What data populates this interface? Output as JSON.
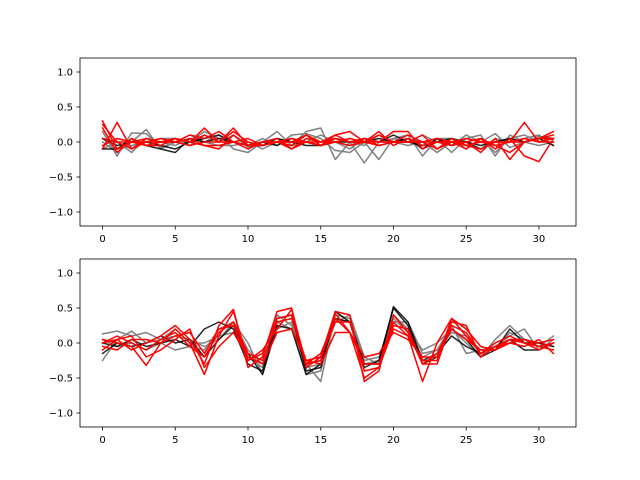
{
  "figure": {
    "background": "#ffffff"
  },
  "chart_data": [
    {
      "type": "line",
      "title": "",
      "xlabel": "",
      "ylabel": "",
      "xlim": [
        -1.55,
        32.55
      ],
      "ylim": [
        -1.2,
        1.2
      ],
      "xticks": [
        0,
        5,
        10,
        15,
        20,
        25,
        30
      ],
      "yticks": [
        -1.0,
        -0.5,
        0.0,
        0.5,
        1.0
      ],
      "xtick_labels": [
        "0",
        "5",
        "10",
        "15",
        "20",
        "25",
        "30"
      ],
      "ytick_labels": [
        "−1.0",
        "−0.5",
        "0.0",
        "0.5",
        "1.0"
      ],
      "grid": false,
      "x": [
        0,
        1,
        2,
        3,
        4,
        5,
        6,
        7,
        8,
        9,
        10,
        11,
        12,
        13,
        14,
        15,
        16,
        17,
        18,
        19,
        20,
        21,
        22,
        23,
        24,
        25,
        26,
        27,
        28,
        29,
        30,
        31
      ],
      "series": [
        {
          "color": "#808080",
          "values": [
            0.15,
            -0.2,
            0.13,
            0.12,
            -0.08,
            0.0,
            0.1,
            0.0,
            0.1,
            -0.1,
            -0.15,
            0.0,
            0.15,
            -0.05,
            0.15,
            0.2,
            -0.25,
            0.0,
            -0.3,
            0.0,
            0.05,
            0.1,
            -0.2,
            0.05,
            -0.15,
            0.05,
            0.1,
            -0.2,
            0.1,
            0.0,
            0.08,
            0.05
          ]
        },
        {
          "color": "#808080",
          "values": [
            0.0,
            -0.15,
            0.0,
            0.18,
            -0.1,
            0.0,
            0.0,
            0.15,
            0.05,
            0.0,
            -0.05,
            0.05,
            -0.05,
            0.1,
            0.12,
            0.05,
            -0.12,
            -0.15,
            0.0,
            -0.25,
            0.05,
            0.0,
            0.1,
            0.0,
            -0.05,
            0.1,
            0.0,
            0.12,
            -0.08,
            0.0,
            -0.05,
            0.0
          ]
        },
        {
          "color": "#808080",
          "values": [
            0.05,
            -0.1,
            -0.05,
            0.0,
            0.05,
            0.05,
            -0.05,
            0.1,
            0.0,
            0.1,
            -0.08,
            0.0,
            0.05,
            0.0,
            0.1,
            0.0,
            0.05,
            0.0,
            -0.05,
            0.1,
            -0.05,
            0.05,
            0.0,
            -0.15,
            0.0,
            -0.05,
            -0.1,
            0.05,
            0.0,
            0.05,
            0.1,
            -0.05
          ]
        },
        {
          "color": "#808080",
          "values": [
            -0.1,
            0.0,
            -0.15,
            0.05,
            0.0,
            -0.05,
            0.05,
            0.0,
            -0.05,
            -0.05,
            0.0,
            -0.1,
            0.0,
            -0.05,
            0.0,
            0.1,
            0.0,
            -0.1,
            0.05,
            0.0,
            0.0,
            -0.05,
            0.0,
            0.05,
            0.05,
            -0.1,
            0.05,
            -0.15,
            0.05,
            0.1,
            0.0,
            0.05
          ]
        },
        {
          "color": "#000000",
          "values": [
            -0.1,
            -0.1,
            0.05,
            -0.05,
            -0.1,
            -0.15,
            0.05,
            0.0,
            0.05,
            0.0,
            -0.05,
            -0.05,
            0.05,
            0.0,
            -0.05,
            -0.05,
            0.0,
            0.0,
            0.0,
            0.05,
            0.0,
            0.05,
            -0.1,
            0.05,
            -0.05,
            0.0,
            -0.05,
            0.0,
            0.05,
            0.0,
            0.05,
            -0.05
          ]
        },
        {
          "color": "#000000",
          "values": [
            0.05,
            -0.05,
            0.0,
            0.0,
            -0.05,
            -0.1,
            0.0,
            0.05,
            0.1,
            0.0,
            -0.05,
            0.0,
            -0.05,
            0.05,
            0.0,
            -0.05,
            0.05,
            0.0,
            0.05,
            0.0,
            0.1,
            0.0,
            -0.05,
            0.0,
            0.05,
            0.0,
            -0.1,
            0.0,
            0.05,
            0.0,
            0.05,
            0.05
          ]
        },
        {
          "color": "#ff0000",
          "values": [
            0.3,
            -0.1,
            0.0,
            -0.05,
            -0.05,
            0.05,
            0.0,
            0.2,
            0.0,
            0.2,
            -0.05,
            0.0,
            0.05,
            -0.1,
            0.05,
            0.0,
            0.1,
            0.15,
            0.0,
            0.1,
            0.0,
            0.1,
            0.0,
            -0.1,
            0.0,
            -0.05,
            0.0,
            -0.05,
            -0.15,
            0.0,
            0.05,
            0.15
          ]
        },
        {
          "color": "#ff0000",
          "values": [
            0.25,
            0.0,
            0.0,
            0.0,
            0.05,
            0.0,
            0.1,
            0.05,
            0.15,
            0.0,
            -0.1,
            0.0,
            0.0,
            0.0,
            0.1,
            -0.05,
            0.1,
            0.0,
            0.05,
            0.0,
            0.15,
            0.15,
            -0.1,
            0.0,
            -0.05,
            0.0,
            -0.15,
            0.05,
            -0.25,
            0.0,
            0.05,
            0.1
          ]
        },
        {
          "color": "#ff0000",
          "values": [
            -0.1,
            0.28,
            -0.1,
            0.05,
            0.0,
            0.05,
            0.0,
            0.1,
            0.0,
            0.15,
            0.0,
            -0.05,
            0.0,
            -0.05,
            0.1,
            0.0,
            0.05,
            0.0,
            0.05,
            -0.05,
            0.0,
            0.0,
            0.1,
            -0.1,
            0.05,
            -0.05,
            -0.1,
            0.0,
            0.0,
            0.28,
            0.0,
            0.05
          ]
        },
        {
          "color": "#ff0000",
          "values": [
            0.2,
            -0.15,
            0.05,
            -0.05,
            0.0,
            0.0,
            0.05,
            -0.05,
            -0.1,
            0.1,
            -0.05,
            -0.05,
            0.0,
            -0.1,
            0.0,
            -0.05,
            0.05,
            0.0,
            0.0,
            0.15,
            -0.05,
            0.05,
            -0.05,
            0.0,
            0.0,
            -0.1,
            0.05,
            -0.1,
            0.05,
            -0.2,
            -0.28,
            0.05
          ]
        },
        {
          "color": "#ff0000",
          "values": [
            0.05,
            0.0,
            -0.1,
            0.0,
            0.0,
            0.05,
            0.0,
            -0.05,
            -0.05,
            0.0,
            0.05,
            -0.05,
            0.0,
            0.0,
            0.0,
            -0.05,
            0.0,
            0.05,
            0.0,
            -0.05,
            0.0,
            0.0,
            0.0,
            0.05,
            0.0,
            0.0,
            0.05,
            -0.05,
            0.0,
            0.05,
            0.0,
            0.0
          ]
        },
        {
          "color": "#ff0000",
          "values": [
            -0.05,
            0.05,
            0.0,
            0.05,
            0.0,
            0.0,
            -0.05,
            0.0,
            0.0,
            0.0,
            -0.05,
            0.0,
            0.0,
            0.05,
            0.0,
            0.0,
            0.0,
            -0.05,
            0.0,
            0.0,
            0.0,
            0.0,
            0.0,
            0.0,
            0.0,
            0.05,
            0.0,
            0.0,
            0.0,
            0.0,
            0.05,
            0.05
          ]
        }
      ]
    },
    {
      "type": "line",
      "title": "",
      "xlabel": "",
      "ylabel": "",
      "xlim": [
        -1.55,
        32.55
      ],
      "ylim": [
        -1.2,
        1.2
      ],
      "xticks": [
        0,
        5,
        10,
        15,
        20,
        25,
        30
      ],
      "yticks": [
        -1.0,
        -0.5,
        0.0,
        0.5,
        1.0
      ],
      "xtick_labels": [
        "0",
        "5",
        "10",
        "15",
        "20",
        "25",
        "30"
      ],
      "ytick_labels": [
        "−1.0",
        "−0.5",
        "0.0",
        "0.5",
        "1.0"
      ],
      "grid": false,
      "x": [
        0,
        1,
        2,
        3,
        4,
        5,
        6,
        7,
        8,
        9,
        10,
        11,
        12,
        13,
        14,
        15,
        16,
        17,
        18,
        19,
        20,
        21,
        22,
        23,
        24,
        25,
        26,
        27,
        28,
        29,
        30,
        31
      ],
      "series": [
        {
          "color": "#808080",
          "values": [
            0.13,
            0.17,
            0.1,
            0.15,
            0.05,
            0.1,
            0.05,
            -0.05,
            0.05,
            0.3,
            0.0,
            -0.45,
            0.3,
            0.2,
            -0.3,
            -0.55,
            0.4,
            0.35,
            -0.25,
            -0.2,
            0.4,
            0.2,
            -0.1,
            0.0,
            0.2,
            0.0,
            -0.2,
            0.05,
            0.25,
            0.05,
            -0.05,
            0.1
          ]
        },
        {
          "color": "#808080",
          "values": [
            -0.25,
            0.05,
            0.17,
            0.0,
            0.05,
            0.2,
            0.0,
            0.0,
            0.1,
            0.15,
            -0.2,
            -0.35,
            0.4,
            0.25,
            -0.45,
            -0.4,
            0.35,
            0.3,
            -0.3,
            -0.25,
            0.35,
            0.15,
            -0.2,
            -0.1,
            0.25,
            -0.15,
            -0.1,
            -0.05,
            0.1,
            0.2,
            -0.1,
            0.05
          ]
        },
        {
          "color": "#808080",
          "values": [
            0.05,
            -0.05,
            0.0,
            -0.1,
            0.0,
            -0.1,
            -0.05,
            -0.1,
            0.2,
            0.3,
            -0.1,
            -0.3,
            0.2,
            0.3,
            -0.35,
            -0.3,
            0.3,
            0.4,
            -0.2,
            -0.3,
            0.3,
            0.3,
            -0.15,
            -0.1,
            0.15,
            0.1,
            -0.1,
            -0.1,
            0.15,
            0.05,
            0.0,
            -0.05
          ]
        },
        {
          "color": "#000000",
          "values": [
            -0.15,
            0.0,
            -0.05,
            0.0,
            0.1,
            0.0,
            0.05,
            -0.2,
            0.05,
            0.25,
            -0.15,
            -0.45,
            0.25,
            0.2,
            -0.45,
            -0.3,
            0.35,
            0.3,
            -0.35,
            -0.25,
            0.5,
            0.25,
            -0.3,
            -0.2,
            0.2,
            0.05,
            -0.2,
            -0.1,
            0.2,
            0.0,
            0.0,
            -0.05
          ]
        },
        {
          "color": "#000000",
          "values": [
            0.0,
            -0.05,
            0.05,
            -0.05,
            0.0,
            0.05,
            -0.05,
            0.2,
            0.3,
            0.2,
            -0.3,
            -0.4,
            0.35,
            0.4,
            -0.4,
            -0.35,
            0.45,
            0.3,
            -0.3,
            -0.3,
            0.52,
            0.3,
            -0.25,
            -0.15,
            0.1,
            -0.05,
            -0.15,
            -0.05,
            0.05,
            -0.1,
            -0.1,
            0.0
          ]
        },
        {
          "color": "#ff0000",
          "values": [
            0.05,
            0.0,
            -0.05,
            -0.32,
            0.0,
            0.2,
            0.0,
            -0.45,
            0.1,
            0.45,
            -0.25,
            -0.1,
            0.2,
            0.48,
            -0.3,
            -0.25,
            0.42,
            0.15,
            -0.5,
            -0.35,
            0.2,
            0.1,
            -0.55,
            0.0,
            0.35,
            0.2,
            -0.05,
            -0.1,
            0.0,
            -0.05,
            0.05,
            -0.15
          ]
        },
        {
          "color": "#ff0000",
          "values": [
            -0.1,
            0.05,
            -0.1,
            0.0,
            0.1,
            0.25,
            0.05,
            -0.3,
            0.25,
            0.48,
            -0.35,
            -0.2,
            0.45,
            0.5,
            -0.35,
            -0.2,
            0.45,
            0.4,
            -0.55,
            -0.4,
            0.4,
            0.15,
            -0.3,
            -0.3,
            0.3,
            0.25,
            -0.2,
            -0.05,
            0.0,
            0.05,
            0.0,
            0.05
          ]
        },
        {
          "color": "#ff0000",
          "values": [
            0.0,
            0.1,
            0.0,
            -0.1,
            0.05,
            0.15,
            -0.05,
            -0.2,
            0.15,
            0.3,
            -0.15,
            -0.25,
            0.3,
            0.35,
            -0.25,
            -0.2,
            0.3,
            0.3,
            -0.4,
            -0.35,
            0.25,
            0.2,
            -0.3,
            -0.15,
            0.25,
            0.15,
            -0.15,
            -0.05,
            0.05,
            0.05,
            -0.05,
            0.0
          ]
        },
        {
          "color": "#ff0000",
          "values": [
            -0.05,
            -0.1,
            0.05,
            0.05,
            0.0,
            0.1,
            0.15,
            -0.15,
            0.2,
            0.25,
            -0.25,
            -0.15,
            0.35,
            0.4,
            -0.3,
            -0.15,
            0.35,
            0.15,
            -0.3,
            -0.3,
            0.3,
            0.1,
            -0.25,
            -0.25,
            0.35,
            0.1,
            -0.15,
            0.0,
            0.1,
            0.0,
            -0.05,
            -0.1
          ]
        },
        {
          "color": "#ff0000",
          "values": [
            0.0,
            0.05,
            0.1,
            -0.2,
            -0.1,
            0.05,
            0.2,
            -0.35,
            -0.05,
            0.15,
            -0.2,
            -0.3,
            0.15,
            0.2,
            -0.25,
            -0.3,
            0.15,
            0.15,
            -0.2,
            -0.15,
            0.15,
            0.05,
            -0.2,
            -0.2,
            0.2,
            0.05,
            -0.1,
            -0.1,
            0.05,
            0.0,
            -0.1,
            0.0
          ]
        }
      ]
    }
  ]
}
